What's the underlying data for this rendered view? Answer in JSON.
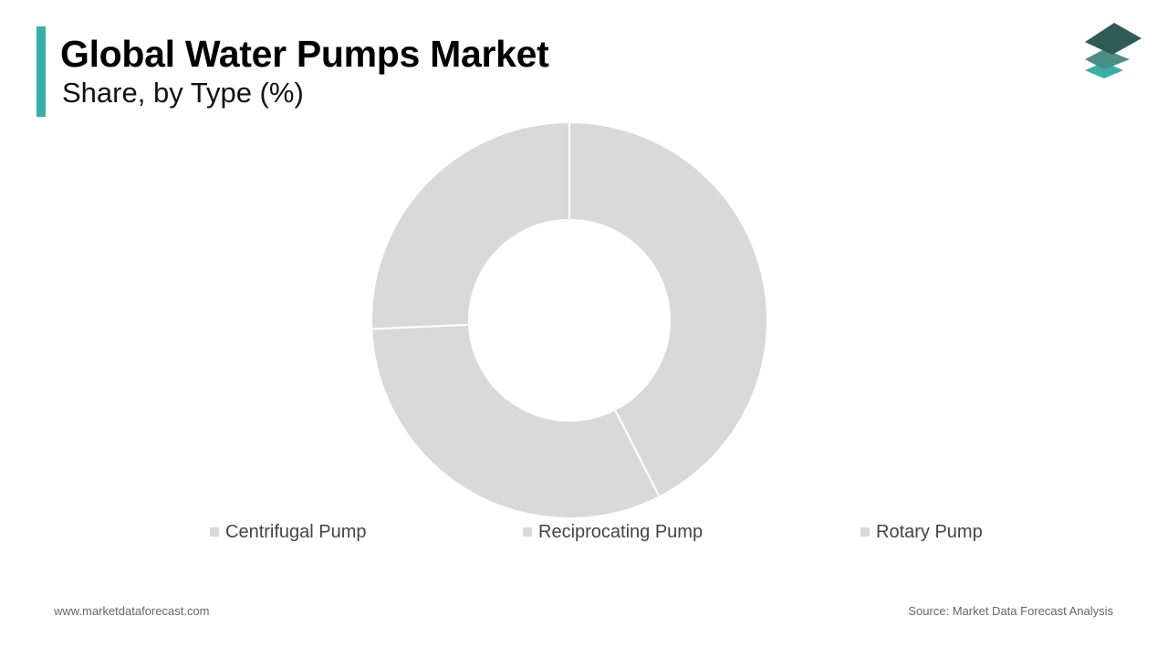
{
  "header": {
    "title": "Global Water Pumps Market",
    "subtitle": "Share, by Type (%)",
    "accent_color": "#3aaea8"
  },
  "logo": {
    "icon": "stacked-layers-logo",
    "colors": [
      "#2e5b56",
      "#4b8e86",
      "#3aaea8"
    ]
  },
  "chart_data": {
    "type": "pie",
    "style": "donut",
    "title": "Global Water Pumps Market",
    "subtitle": "Share, by Type (%)",
    "categories": [
      "Centrifugal Pump",
      "Reciprocating Pump",
      "Rotary Pump"
    ],
    "values": [
      42.5,
      31.8,
      25.7
    ],
    "colors": [
      "#d9d9d9",
      "#d9d9d9",
      "#d9d9d9"
    ],
    "legend_position": "bottom",
    "data_labels": false
  },
  "footer": {
    "website": "www.marketdataforecast.com",
    "source": "Source: Market Data Forecast Analysis"
  }
}
